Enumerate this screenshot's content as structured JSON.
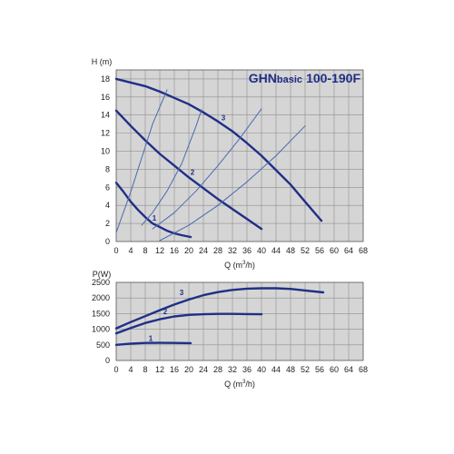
{
  "figure": {
    "title_brand": "GHN",
    "title_sub": "basic",
    "title_model": "100-190F"
  },
  "colors": {
    "plot_background": "#d5d5d5",
    "grid": "#8f8f8f",
    "pump_curve": "#1f2f86",
    "system_curve": "#4a6ab0",
    "text": "#222222"
  },
  "chart_data": [
    {
      "type": "line",
      "title": "GHNbasic 100-190F",
      "xlabel": "Q (m3/h)",
      "xlabel_parts": {
        "pre": "Q (m",
        "sup": "3",
        "post": "/h)"
      },
      "ylabel": "H (m)",
      "xlim": [
        0,
        68
      ],
      "ylim": [
        0,
        19
      ],
      "xticks": [
        0,
        4,
        8,
        12,
        16,
        20,
        24,
        28,
        32,
        36,
        40,
        44,
        48,
        52,
        56,
        60,
        64,
        68
      ],
      "yticks": [
        0,
        2,
        4,
        6,
        8,
        10,
        12,
        14,
        16,
        18
      ],
      "grid": true,
      "series": [
        {
          "name": "1",
          "role": "pump",
          "x": [
            0,
            2,
            4,
            6,
            8,
            10,
            12,
            14,
            16,
            18,
            20.5
          ],
          "y": [
            6.5,
            5.5,
            4.4,
            3.5,
            2.7,
            2.0,
            1.6,
            1.2,
            0.9,
            0.7,
            0.5
          ],
          "label_at": [
            10.5,
            2.3
          ]
        },
        {
          "name": "2",
          "role": "pump",
          "x": [
            0,
            4,
            8,
            12,
            16,
            20,
            24,
            28,
            32,
            36,
            40
          ],
          "y": [
            14.5,
            12.8,
            11.2,
            9.7,
            8.4,
            7.1,
            5.9,
            4.7,
            3.6,
            2.5,
            1.4
          ],
          "label_at": [
            21,
            7.4
          ]
        },
        {
          "name": "3",
          "role": "pump",
          "x": [
            0,
            4,
            8,
            12,
            16,
            20,
            24,
            28,
            32,
            36,
            40,
            44,
            48,
            52,
            56.5
          ],
          "y": [
            18.0,
            17.6,
            17.2,
            16.6,
            15.9,
            15.2,
            14.3,
            13.3,
            12.2,
            10.9,
            9.5,
            7.9,
            6.3,
            4.4,
            2.3
          ],
          "label_at": [
            29.5,
            13.4
          ]
        },
        {
          "name": "",
          "role": "system",
          "x": [
            0,
            4,
            8,
            10,
            14
          ],
          "y": [
            1.0,
            5.5,
            10.5,
            13.0,
            16.8
          ],
          "label_at": null
        },
        {
          "name": "",
          "role": "system",
          "x": [
            7,
            10,
            14,
            18,
            22,
            23.5
          ],
          "y": [
            1.8,
            3.2,
            5.6,
            8.6,
            12.8,
            14.6
          ],
          "label_at": null
        },
        {
          "name": "",
          "role": "system",
          "x": [
            10,
            16,
            22,
            28,
            34,
            40
          ],
          "y": [
            1.4,
            3.2,
            5.6,
            8.4,
            11.4,
            14.7
          ],
          "label_at": null
        },
        {
          "name": "",
          "role": "system",
          "x": [
            12,
            20,
            28,
            36,
            44,
            52
          ],
          "y": [
            0.1,
            1.8,
            4.0,
            6.6,
            9.5,
            12.8
          ],
          "label_at": null
        }
      ]
    },
    {
      "type": "line",
      "title": "",
      "xlabel": "Q (m3/h)",
      "xlabel_parts": {
        "pre": "Q (m",
        "sup": "3",
        "post": "/h)"
      },
      "ylabel": "P(W)",
      "xlim": [
        0,
        68
      ],
      "ylim": [
        0,
        2500
      ],
      "xticks": [
        0,
        4,
        8,
        12,
        16,
        20,
        24,
        28,
        32,
        36,
        40,
        44,
        48,
        52,
        56,
        60,
        64,
        68
      ],
      "yticks": [
        0,
        500,
        1000,
        1500,
        2000,
        2500
      ],
      "grid": true,
      "series": [
        {
          "name": "1",
          "role": "pump",
          "x": [
            0,
            4,
            8,
            12,
            16,
            20.5
          ],
          "y": [
            500,
            540,
            560,
            565,
            560,
            555
          ],
          "label_at": [
            9.5,
            620
          ]
        },
        {
          "name": "2",
          "role": "pump",
          "x": [
            0,
            4,
            8,
            12,
            16,
            20,
            24,
            28,
            32,
            36,
            40
          ],
          "y": [
            870,
            1040,
            1200,
            1320,
            1410,
            1460,
            1480,
            1490,
            1490,
            1485,
            1480
          ],
          "label_at": [
            13.5,
            1480
          ]
        },
        {
          "name": "3",
          "role": "pump",
          "x": [
            0,
            4,
            8,
            12,
            16,
            20,
            24,
            28,
            32,
            36,
            40,
            44,
            48,
            52,
            57
          ],
          "y": [
            1030,
            1230,
            1420,
            1610,
            1790,
            1950,
            2090,
            2190,
            2260,
            2300,
            2310,
            2310,
            2290,
            2240,
            2180
          ],
          "label_at": [
            18,
            2100
          ]
        }
      ]
    }
  ]
}
